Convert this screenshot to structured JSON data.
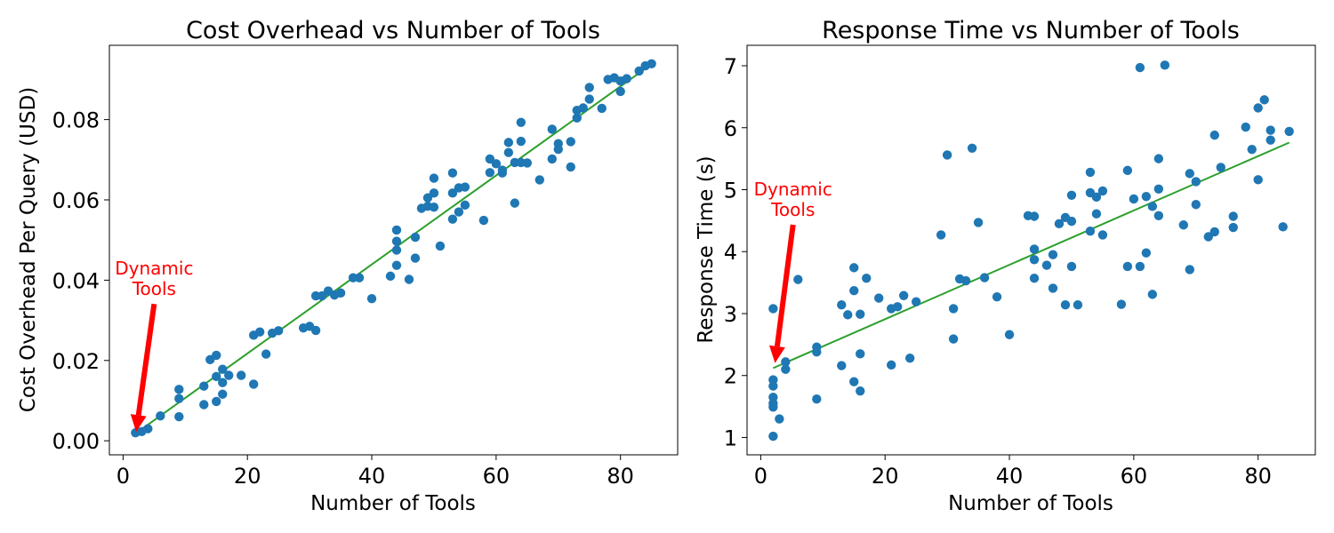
{
  "chart_data": [
    {
      "type": "scatter",
      "title": "Cost Overhead vs Number of Tools",
      "xlabel": "Number of Tools",
      "ylabel": "Cost Overhead Per Query (USD)",
      "xlim": [
        -2.2,
        89.2
      ],
      "ylim": [
        -0.0035,
        0.0985
      ],
      "xticks": [
        0,
        20,
        40,
        60,
        80
      ],
      "xtick_labels": [
        "0",
        "20",
        "40",
        "60",
        "80"
      ],
      "yticks": [
        0.0,
        0.02,
        0.04,
        0.06,
        0.08
      ],
      "ytick_labels": [
        "0.00",
        "0.02",
        "0.04",
        "0.06",
        "0.08"
      ],
      "grid": false,
      "points_color": "#1f77b4",
      "fit_color": "#2ca02c",
      "fit_line": {
        "x": [
          2,
          85
        ],
        "y": [
          0.0018,
          0.0938
        ]
      },
      "annotation": {
        "text": [
          "Dynamic",
          "Tools"
        ],
        "color": "#ff0000",
        "text_at": [
          5,
          0.0385
        ],
        "arrow_to": [
          2.1,
          0.0022
        ]
      },
      "x": [
        2,
        3,
        4,
        6,
        9,
        9,
        9,
        13,
        13,
        14,
        15,
        15,
        15,
        16,
        16,
        16,
        17,
        19,
        21,
        21,
        22,
        23,
        24,
        25,
        29,
        30,
        31,
        31,
        32,
        33,
        34,
        35,
        37,
        38,
        40,
        43,
        44,
        44,
        44,
        44,
        46,
        47,
        47,
        48,
        49,
        49,
        50,
        50,
        50,
        51,
        53,
        53,
        53,
        54,
        54,
        55,
        55,
        58,
        59,
        59,
        60,
        61,
        61,
        62,
        62,
        63,
        63,
        64,
        64,
        64,
        65,
        67,
        69,
        69,
        70,
        70,
        72,
        72,
        73,
        73,
        74,
        75,
        75,
        77,
        78,
        79,
        80,
        80,
        81,
        83,
        84,
        85
      ],
      "y": [
        0.002,
        0.0023,
        0.003,
        0.0062,
        0.0128,
        0.0105,
        0.006,
        0.0136,
        0.009,
        0.0202,
        0.0213,
        0.016,
        0.0098,
        0.0178,
        0.0145,
        0.0116,
        0.0163,
        0.0163,
        0.0263,
        0.0141,
        0.0271,
        0.0216,
        0.0268,
        0.0274,
        0.0281,
        0.0285,
        0.0361,
        0.0275,
        0.0361,
        0.0373,
        0.0363,
        0.0368,
        0.0406,
        0.0406,
        0.0354,
        0.041,
        0.0525,
        0.0497,
        0.0475,
        0.0437,
        0.0402,
        0.0507,
        0.0455,
        0.0579,
        0.0605,
        0.0584,
        0.0654,
        0.0617,
        0.0582,
        0.0485,
        0.0667,
        0.0617,
        0.0552,
        0.063,
        0.057,
        0.0632,
        0.0587,
        0.0549,
        0.0702,
        0.0668,
        0.069,
        0.0674,
        0.0667,
        0.0743,
        0.0718,
        0.0693,
        0.0592,
        0.0793,
        0.0746,
        0.0693,
        0.0692,
        0.065,
        0.0776,
        0.0702,
        0.074,
        0.0726,
        0.0745,
        0.0682,
        0.0823,
        0.0804,
        0.0829,
        0.088,
        0.0851,
        0.0828,
        0.09,
        0.0904,
        0.0896,
        0.087,
        0.0902,
        0.0921,
        0.0934,
        0.0939
      ]
    },
    {
      "type": "scatter",
      "title": "Response Time vs Number of Tools",
      "xlabel": "Number of Tools",
      "ylabel": "Response Time (s)",
      "xlim": [
        -2.2,
        89.2
      ],
      "ylim": [
        0.72,
        7.33
      ],
      "xticks": [
        0,
        20,
        40,
        60,
        80
      ],
      "xtick_labels": [
        "0",
        "20",
        "40",
        "60",
        "80"
      ],
      "yticks": [
        1,
        2,
        3,
        4,
        5,
        6,
        7
      ],
      "ytick_labels": [
        "1",
        "2",
        "3",
        "4",
        "5",
        "6",
        "7"
      ],
      "grid": false,
      "points_color": "#1f77b4",
      "fit_color": "#2ca02c",
      "fit_line": {
        "x": [
          2,
          85
        ],
        "y": [
          2.12,
          5.76
        ]
      },
      "annotation": {
        "text": [
          "Dynamic",
          "Tools"
        ],
        "color": "#ff0000",
        "text_at": [
          5.2,
          4.72
        ],
        "arrow_to": [
          2.3,
          2.2
        ]
      },
      "x": [
        2,
        2,
        2,
        2,
        2,
        2,
        2,
        3,
        4,
        4,
        6,
        9,
        9,
        9,
        13,
        13,
        14,
        15,
        15,
        15,
        16,
        16,
        16,
        17,
        19,
        21,
        21,
        22,
        23,
        24,
        25,
        29,
        30,
        31,
        31,
        32,
        33,
        34,
        35,
        36,
        38,
        40,
        43,
        44,
        44,
        44,
        44,
        46,
        47,
        47,
        48,
        49,
        49,
        50,
        50,
        50,
        51,
        53,
        53,
        53,
        54,
        54,
        55,
        55,
        58,
        59,
        59,
        60,
        61,
        61,
        62,
        62,
        63,
        63,
        64,
        64,
        64,
        65,
        68,
        69,
        69,
        70,
        70,
        72,
        73,
        73,
        74,
        76,
        76,
        78,
        79,
        80,
        80,
        81,
        82,
        82,
        84,
        85
      ],
      "y": [
        1.02,
        1.49,
        1.55,
        1.65,
        1.83,
        1.93,
        3.08,
        1.3,
        2.1,
        2.22,
        3.55,
        1.62,
        2.38,
        2.46,
        2.16,
        3.14,
        2.98,
        1.9,
        3.37,
        3.74,
        1.75,
        2.35,
        2.99,
        3.57,
        3.25,
        2.17,
        3.08,
        3.11,
        3.29,
        2.28,
        3.19,
        4.27,
        5.56,
        2.59,
        3.08,
        3.56,
        3.53,
        5.67,
        4.47,
        3.58,
        3.27,
        2.66,
        4.58,
        3.57,
        3.87,
        4.04,
        4.57,
        3.78,
        3.41,
        3.95,
        4.45,
        3.14,
        4.55,
        4.49,
        3.76,
        4.91,
        3.14,
        4.33,
        4.95,
        5.28,
        4.61,
        4.88,
        4.27,
        4.98,
        3.15,
        3.76,
        5.31,
        4.85,
        3.76,
        6.97,
        3.98,
        4.89,
        3.31,
        4.73,
        4.58,
        5.01,
        5.5,
        7.01,
        4.43,
        3.71,
        5.26,
        4.76,
        5.13,
        4.24,
        4.32,
        5.88,
        5.36,
        4.39,
        4.57,
        6.01,
        5.65,
        5.16,
        6.32,
        6.45,
        5.8,
        5.96,
        4.4,
        5.94
      ]
    }
  ]
}
